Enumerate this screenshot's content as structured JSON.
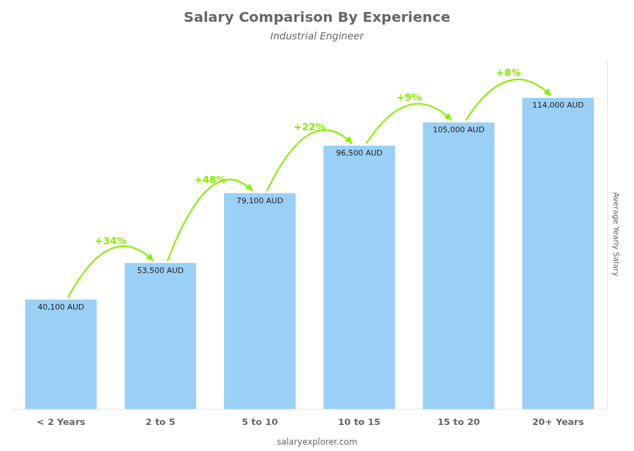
{
  "chart_data": {
    "type": "bar",
    "title": "Salary Comparison By Experience",
    "subtitle": "Industrial Engineer",
    "ylabel": "Average Yearly Salary",
    "footer": "salaryexplorer.com",
    "categories": [
      "< 2 Years",
      "2 to 5",
      "5 to 10",
      "10 to 15",
      "15 to 20",
      "20+ Years"
    ],
    "values": [
      40100,
      53500,
      79100,
      96500,
      105000,
      114000
    ],
    "value_labels": [
      "40,100 AUD",
      "53,500 AUD",
      "79,100 AUD",
      "96,500 AUD",
      "105,000 AUD",
      "114,000 AUD"
    ],
    "data_labels": true,
    "ylim": [
      0,
      128000
    ],
    "grid": false,
    "tick_labels": "x",
    "annotations": [
      {
        "text": "+34%",
        "from": "< 2 Years",
        "to": "2 to 5",
        "color": "#88ee00"
      },
      {
        "text": "+48%",
        "from": "2 to 5",
        "to": "5 to 10",
        "color": "#88ee00"
      },
      {
        "text": "+22%",
        "from": "5 to 10",
        "to": "10 to 15",
        "color": "#88ee00"
      },
      {
        "text": "+9%",
        "from": "10 to 15",
        "to": "15 to 20",
        "color": "#88ee00"
      },
      {
        "text": "+8%",
        "from": "15 to 20",
        "to": "20+ Years",
        "color": "#88ee00"
      }
    ]
  }
}
